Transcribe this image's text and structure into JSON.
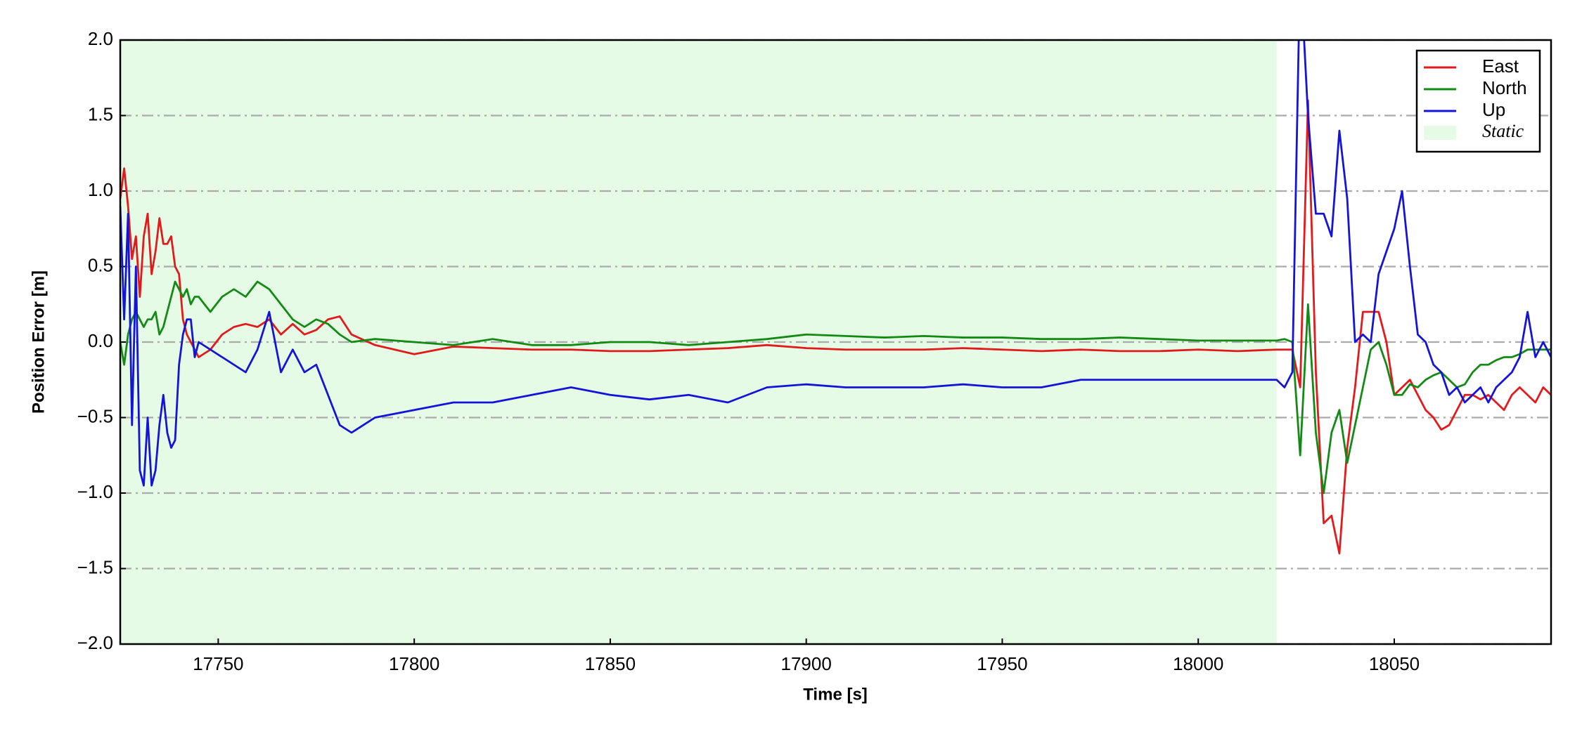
{
  "chart_data": {
    "type": "line",
    "xlabel": "Time [s]",
    "ylabel": "Position Error [m]",
    "xlim": [
      17725,
      18090
    ],
    "ylim": [
      -2,
      2
    ],
    "xticks": [
      17750,
      17800,
      17850,
      17900,
      17950,
      18000,
      18050
    ],
    "yticks": [
      {
        "value": -2,
        "label": "−2.0"
      },
      {
        "value": -1.5,
        "label": "−1.5"
      },
      {
        "value": -1,
        "label": "−1.0"
      },
      {
        "value": -0.5,
        "label": "−0.5"
      },
      {
        "value": 0,
        "label": "0.0"
      },
      {
        "value": 0.5,
        "label": "0.5"
      },
      {
        "value": 1,
        "label": "1.0"
      },
      {
        "value": 1.5,
        "label": "1.5"
      },
      {
        "value": 2,
        "label": "2.0"
      }
    ],
    "grid": true,
    "legend_position": "upper right",
    "static_region": {
      "label": "Static",
      "xmin": 17725,
      "xmax": 18020,
      "color": "#e6fbe6"
    },
    "x": [
      17725,
      17726,
      17727,
      17728,
      17729,
      17730,
      17731,
      17732,
      17733,
      17734,
      17735,
      17736,
      17737,
      17738,
      17739,
      17740,
      17741,
      17742,
      17743,
      17744,
      17745,
      17748,
      17751,
      17754,
      17757,
      17760,
      17763,
      17766,
      17769,
      17772,
      17775,
      17778,
      17781,
      17784,
      17790,
      17800,
      17810,
      17820,
      17830,
      17840,
      17850,
      17860,
      17870,
      17880,
      17890,
      17900,
      17910,
      17920,
      17930,
      17940,
      17950,
      17960,
      17970,
      17980,
      17990,
      18000,
      18010,
      18020,
      18022,
      18024,
      18026,
      18028,
      18030,
      18032,
      18034,
      18036,
      18038,
      18040,
      18042,
      18044,
      18046,
      18048,
      18050,
      18052,
      18054,
      18056,
      18058,
      18060,
      18062,
      18064,
      18066,
      18068,
      18070,
      18072,
      18074,
      18076,
      18078,
      18080,
      18082,
      18084,
      18086,
      18088,
      18090
    ],
    "series": [
      {
        "name": "East",
        "color": "#e31a1c",
        "values": [
          0.95,
          1.15,
          0.9,
          0.55,
          0.7,
          0.3,
          0.7,
          0.85,
          0.45,
          0.6,
          0.82,
          0.65,
          0.65,
          0.7,
          0.5,
          0.45,
          0.15,
          0.05,
          0.0,
          -0.05,
          -0.1,
          -0.05,
          0.05,
          0.1,
          0.12,
          0.1,
          0.15,
          0.05,
          0.12,
          0.05,
          0.08,
          0.15,
          0.17,
          0.05,
          -0.02,
          -0.08,
          -0.03,
          -0.04,
          -0.05,
          -0.05,
          -0.06,
          -0.06,
          -0.05,
          -0.04,
          -0.02,
          -0.04,
          -0.05,
          -0.05,
          -0.05,
          -0.04,
          -0.05,
          -0.06,
          -0.05,
          -0.06,
          -0.06,
          -0.05,
          -0.06,
          -0.05,
          -0.05,
          -0.05,
          -0.3,
          1.6,
          -0.2,
          -1.2,
          -1.15,
          -1.4,
          -0.7,
          -0.3,
          0.2,
          0.2,
          0.2,
          0.0,
          -0.35,
          -0.3,
          -0.25,
          -0.35,
          -0.45,
          -0.5,
          -0.58,
          -0.55,
          -0.45,
          -0.35,
          -0.35,
          -0.38,
          -0.35,
          -0.4,
          -0.45,
          -0.35,
          -0.3,
          -0.35,
          -0.4,
          -0.3,
          -0.35
        ]
      },
      {
        "name": "North",
        "color": "#138a13",
        "values": [
          0.0,
          -0.15,
          0.05,
          0.15,
          0.2,
          0.15,
          0.1,
          0.15,
          0.15,
          0.2,
          0.05,
          0.1,
          0.2,
          0.3,
          0.4,
          0.35,
          0.3,
          0.35,
          0.25,
          0.3,
          0.3,
          0.2,
          0.3,
          0.35,
          0.3,
          0.4,
          0.35,
          0.25,
          0.15,
          0.1,
          0.15,
          0.12,
          0.05,
          0.0,
          0.02,
          0.0,
          -0.02,
          0.02,
          -0.02,
          -0.02,
          0.0,
          0.0,
          -0.02,
          0.0,
          0.02,
          0.05,
          0.04,
          0.03,
          0.04,
          0.03,
          0.03,
          0.02,
          0.02,
          0.03,
          0.02,
          0.01,
          0.01,
          0.01,
          0.02,
          0.0,
          -0.75,
          0.25,
          -0.6,
          -1.0,
          -0.6,
          -0.45,
          -0.8,
          -0.55,
          -0.3,
          -0.05,
          0.0,
          -0.15,
          -0.35,
          -0.35,
          -0.28,
          -0.3,
          -0.25,
          -0.22,
          -0.2,
          -0.25,
          -0.3,
          -0.28,
          -0.2,
          -0.15,
          -0.15,
          -0.12,
          -0.1,
          -0.1,
          -0.08,
          -0.05,
          -0.05,
          -0.05,
          -0.05
        ]
      },
      {
        "name": "Up",
        "color": "#1414d8",
        "values": [
          0.9,
          0.15,
          0.85,
          -0.55,
          0.5,
          -0.85,
          -0.95,
          -0.5,
          -0.95,
          -0.85,
          -0.55,
          -0.35,
          -0.6,
          -0.7,
          -0.65,
          -0.15,
          0.05,
          0.15,
          0.15,
          -0.1,
          0.0,
          -0.05,
          -0.1,
          -0.15,
          -0.2,
          -0.05,
          0.2,
          -0.2,
          -0.05,
          -0.2,
          -0.15,
          -0.35,
          -0.55,
          -0.6,
          -0.5,
          -0.45,
          -0.4,
          -0.4,
          -0.35,
          -0.3,
          -0.35,
          -0.38,
          -0.35,
          -0.4,
          -0.3,
          -0.28,
          -0.3,
          -0.3,
          -0.3,
          -0.28,
          -0.3,
          -0.3,
          -0.25,
          -0.25,
          -0.25,
          -0.25,
          -0.25,
          -0.25,
          -0.3,
          -0.2,
          2.5,
          1.5,
          0.85,
          0.85,
          0.7,
          1.4,
          0.95,
          0.0,
          0.05,
          0.0,
          0.45,
          0.6,
          0.75,
          1.0,
          0.5,
          0.05,
          0.0,
          -0.15,
          -0.2,
          -0.35,
          -0.3,
          -0.4,
          -0.35,
          -0.3,
          -0.4,
          -0.3,
          -0.25,
          -0.2,
          -0.1,
          0.2,
          -0.1,
          0.0,
          -0.1
        ]
      }
    ]
  }
}
